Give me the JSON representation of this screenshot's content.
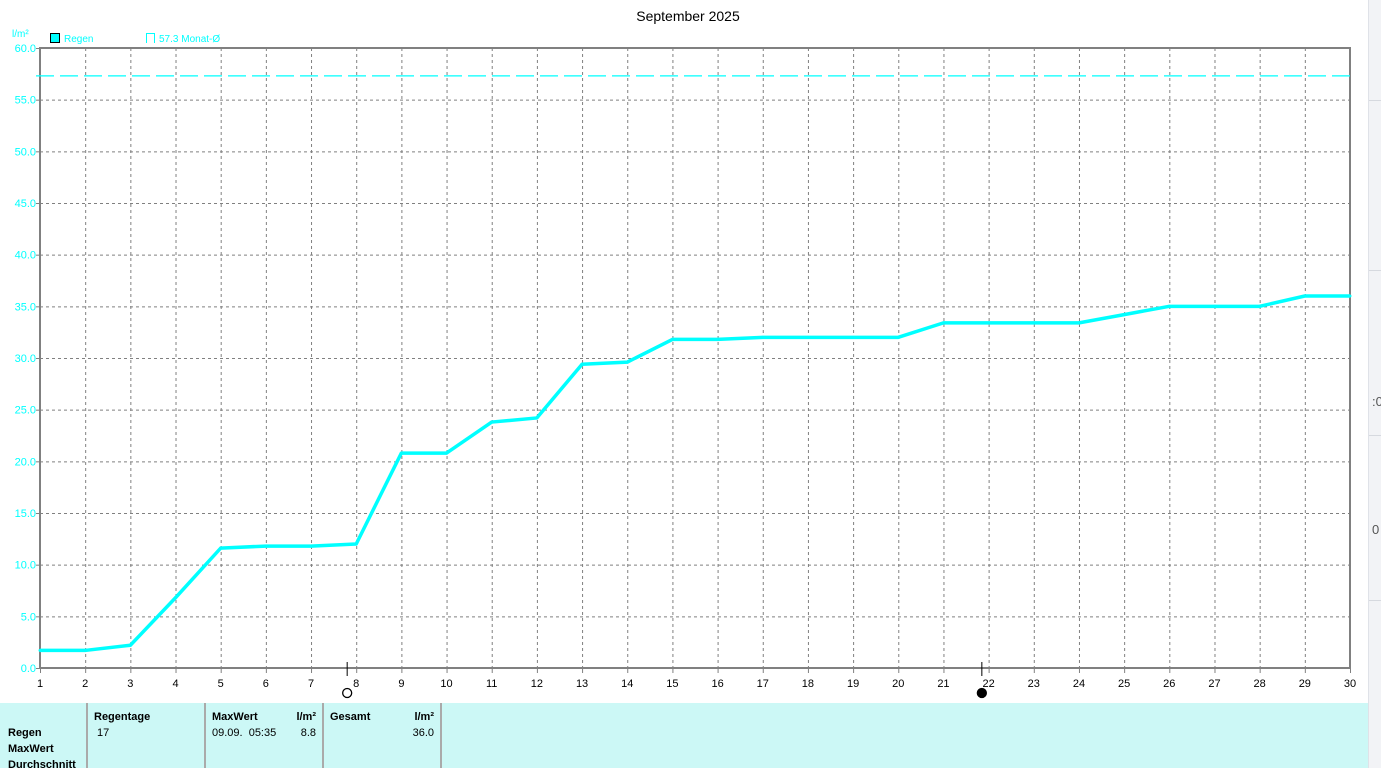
{
  "chart_data": {
    "type": "line",
    "title": "September 2025",
    "ylabel": "l/m²",
    "ylim": [
      0,
      60
    ],
    "xlim": [
      1,
      30
    ],
    "yticks": [
      "0.0",
      "5.0",
      "10.0",
      "15.0",
      "20.0",
      "25.0",
      "30.0",
      "35.0",
      "40.0",
      "45.0",
      "50.0",
      "55.0",
      "60.0"
    ],
    "xticks": [
      "1",
      "2",
      "3",
      "4",
      "5",
      "6",
      "7",
      "8",
      "9",
      "10",
      "11",
      "12",
      "13",
      "14",
      "15",
      "16",
      "17",
      "18",
      "19",
      "20",
      "21",
      "22",
      "23",
      "24",
      "25",
      "26",
      "27",
      "28",
      "29",
      "30"
    ],
    "grid": true,
    "legend_placement": "top-left",
    "legend": [
      {
        "label": "Regen",
        "marker": "filled-square"
      },
      {
        "label": "57.3 Monat-Ø",
        "marker": "open-square"
      }
    ],
    "series": [
      {
        "name": "Regen",
        "color": "#00ffff",
        "x": [
          1,
          2,
          3,
          4,
          5,
          6,
          7,
          8,
          9,
          10,
          11,
          12,
          13,
          14,
          15,
          16,
          17,
          18,
          19,
          20,
          21,
          22,
          23,
          24,
          25,
          26,
          27,
          28,
          29,
          30
        ],
        "values": [
          1.7,
          1.7,
          2.2,
          6.8,
          11.6,
          11.8,
          11.8,
          12.0,
          20.8,
          20.8,
          23.8,
          24.2,
          29.4,
          29.6,
          31.8,
          31.8,
          32.0,
          32.0,
          32.0,
          32.0,
          33.4,
          33.4,
          33.4,
          33.4,
          34.2,
          35.0,
          35.0,
          35.0,
          36.0,
          36.0
        ]
      }
    ],
    "reference_line": {
      "value": 57.3,
      "style": "dashed",
      "color": "#00ffff"
    },
    "moon_markers": [
      {
        "day": 7.8,
        "type": "open-circle"
      },
      {
        "day": 21.85,
        "type": "filled-circle"
      }
    ],
    "colors": {
      "axis": "#808080",
      "grid": "#808080",
      "labels": "#00ffff"
    }
  },
  "table": {
    "row_labels": [
      "Regen",
      "MaxWert",
      "Durchschnitt"
    ],
    "regentage": {
      "header": "Regentage",
      "value": "17"
    },
    "maxwert": {
      "header": "MaxWert",
      "unit": "l/m²",
      "date": "09.09.  05:35",
      "value": "8.8"
    },
    "gesamt": {
      "header": "Gesamt",
      "unit": "l/m²",
      "value": "36.0"
    },
    "background": "#ccf8f6"
  },
  "side_panel": {
    "text1": ":0",
    "text2": "0"
  }
}
